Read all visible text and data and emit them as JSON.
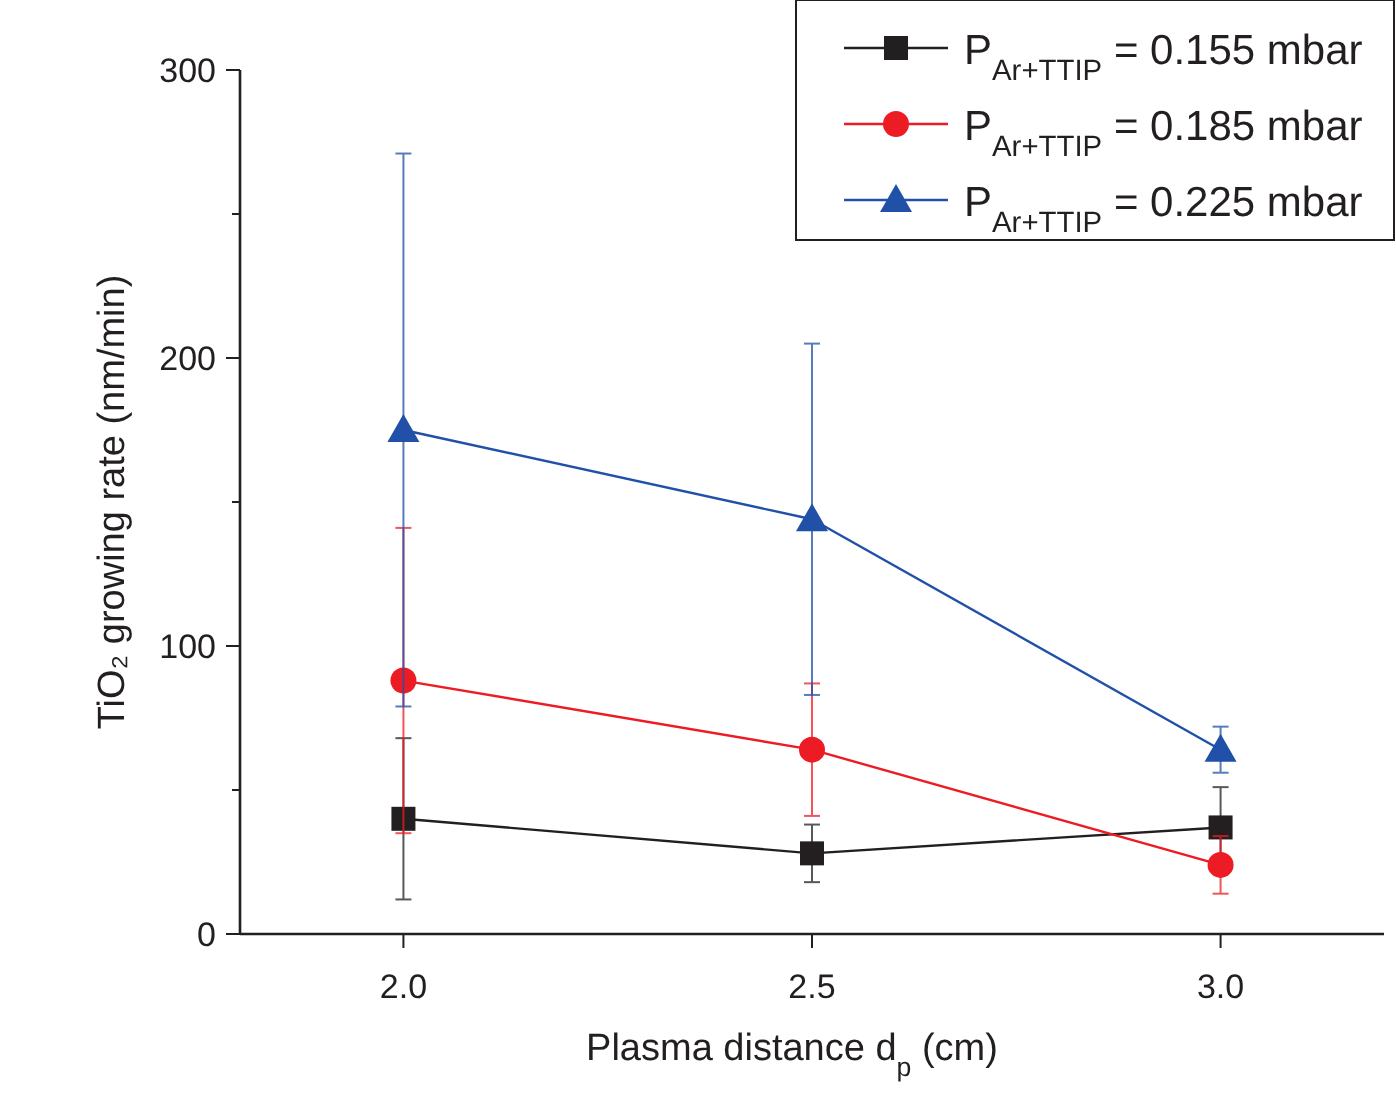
{
  "chart_data": {
    "type": "line",
    "xlabel": "Plasma distance d$_{p}$ (cm)",
    "ylabel": "TiO₂ growing rate (nm/min)",
    "x": [
      2.0,
      2.5,
      3.0
    ],
    "xlim": [
      1.8,
      3.2
    ],
    "xticks": [
      {
        "value": 2.0,
        "label": "2.0"
      },
      {
        "value": 2.5,
        "label": "2.5"
      },
      {
        "value": 3.0,
        "label": "3.0"
      }
    ],
    "ylim": [
      0,
      300
    ],
    "yticks": [
      0,
      {
        "value": 50,
        "label": null
      },
      100,
      {
        "value": 150,
        "label": null
      },
      200,
      {
        "value": 250,
        "label": null
      },
      300
    ],
    "grid": false,
    "legend": "top right",
    "line_style": "solid",
    "series": [
      {
        "name": "P$_{Ar+TTIP}$ = 0.155 mbar",
        "color": "#231f20",
        "marker": "square",
        "values": [
          40,
          28,
          37
        ],
        "errors": [
          28,
          10,
          14
        ]
      },
      {
        "name": "P$_{Ar+TTIP}$ = 0.185 mbar",
        "color": "#ed1c24",
        "marker": "circle",
        "values": [
          88,
          64,
          24
        ],
        "errors": [
          53,
          23,
          10
        ]
      },
      {
        "name": "P$_{Ar+TTIP}$ = 0.225 mbar",
        "color": "#2150a8",
        "marker": "triangle",
        "values": [
          175,
          144,
          64
        ],
        "errors": [
          96,
          61,
          8
        ]
      }
    ]
  }
}
